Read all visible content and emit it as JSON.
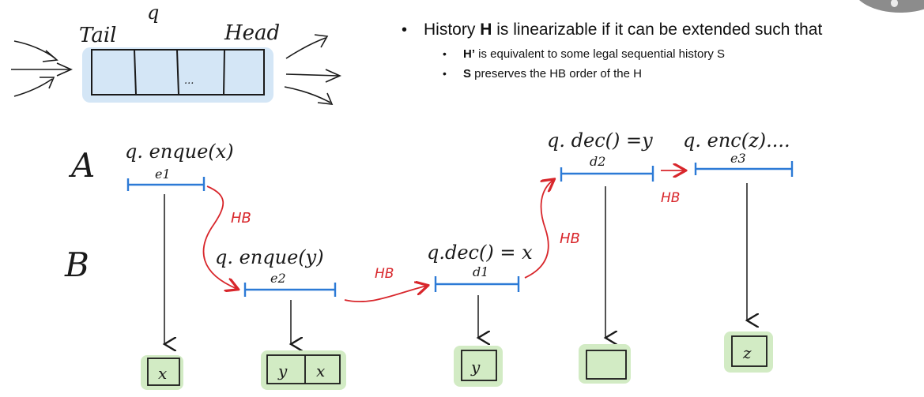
{
  "queue": {
    "label_tail": "Tail",
    "label_q": "q",
    "label_head": "Head",
    "ellipsis": "..."
  },
  "bullets": {
    "main_pre": "History ",
    "main_bold": "H",
    "main_post": " is linearizable if it can be extended such that",
    "sub1_bold": "H’",
    "sub1_rest": " is equivalent to some legal sequential history S",
    "sub2_bold": "S",
    "sub2_rest": " preserves the HB order of the H"
  },
  "threads": {
    "a": "A",
    "b": "B"
  },
  "ops": {
    "e1_call": "q. enque(x)",
    "e1_tag": "e1",
    "e2_call": "q. enque(y)",
    "e2_tag": "e2",
    "d1_call": "q.dec() = x",
    "d1_tag": "d1",
    "d2_call": "q. dec() =y",
    "d2_tag": "d2",
    "e3_call": "q. enc(z)....",
    "e3_tag": "e3"
  },
  "hb_label": "HB",
  "states": {
    "s1": [
      "x"
    ],
    "s2": [
      "y",
      "x"
    ],
    "s3": [
      "y"
    ],
    "s4": [],
    "s5": [
      "z"
    ]
  },
  "colors": {
    "interval_blue": "#2c7ad6",
    "hb_red": "#d8262b",
    "queue_fill": "#cfe3f5",
    "state_fill": "#d2ebc4",
    "ink": "#1a1a1a"
  }
}
